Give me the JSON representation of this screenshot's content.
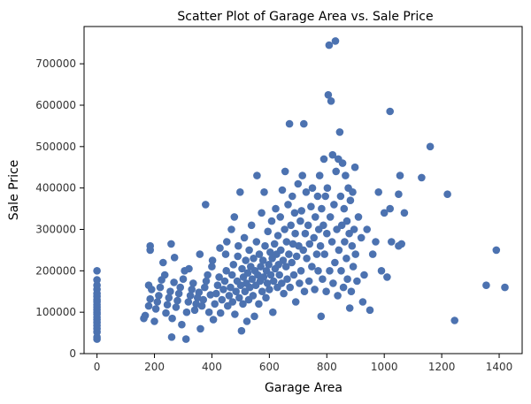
{
  "chart_data": {
    "type": "scatter",
    "title": "Scatter Plot of Garage Area vs. Sale Price",
    "xlabel": "Garage Area",
    "ylabel": "Sale Price",
    "xlim": [
      -45,
      1480
    ],
    "ylim": [
      0,
      790000
    ],
    "xticks": [
      0,
      200,
      400,
      600,
      800,
      1000,
      1200,
      1400
    ],
    "yticks": [
      0,
      100000,
      200000,
      300000,
      400000,
      500000,
      600000,
      700000
    ],
    "grid": false,
    "legend": "none",
    "marker_color": "#4c72b0",
    "points": [
      [
        0,
        35000
      ],
      [
        0,
        40000
      ],
      [
        0,
        52000
      ],
      [
        0,
        60000
      ],
      [
        0,
        68000
      ],
      [
        0,
        75000
      ],
      [
        0,
        82000
      ],
      [
        0,
        88000
      ],
      [
        0,
        95000
      ],
      [
        0,
        100000
      ],
      [
        0,
        106000
      ],
      [
        0,
        112000
      ],
      [
        0,
        118000
      ],
      [
        0,
        125000
      ],
      [
        0,
        130000
      ],
      [
        0,
        138000
      ],
      [
        0,
        145000
      ],
      [
        0,
        155000
      ],
      [
        0,
        165000
      ],
      [
        0,
        178000
      ],
      [
        0,
        200000
      ],
      [
        163,
        85000
      ],
      [
        168,
        92000
      ],
      [
        180,
        115000
      ],
      [
        185,
        132000
      ],
      [
        190,
        155000
      ],
      [
        180,
        165000
      ],
      [
        185,
        250000
      ],
      [
        185,
        260000
      ],
      [
        200,
        78000
      ],
      [
        205,
        108000
      ],
      [
        210,
        125000
      ],
      [
        215,
        140000
      ],
      [
        220,
        160000
      ],
      [
        225,
        178000
      ],
      [
        230,
        220000
      ],
      [
        236,
        190000
      ],
      [
        240,
        98000
      ],
      [
        245,
        118000
      ],
      [
        250,
        135000
      ],
      [
        255,
        150000
      ],
      [
        258,
        265000
      ],
      [
        260,
        40000
      ],
      [
        262,
        85000
      ],
      [
        268,
        172000
      ],
      [
        270,
        232000
      ],
      [
        275,
        112000
      ],
      [
        280,
        128000
      ],
      [
        285,
        145000
      ],
      [
        290,
        160000
      ],
      [
        295,
        70000
      ],
      [
        300,
        180000
      ],
      [
        305,
        200000
      ],
      [
        310,
        35000
      ],
      [
        312,
        100000
      ],
      [
        318,
        125000
      ],
      [
        320,
        205000
      ],
      [
        325,
        140000
      ],
      [
        330,
        155000
      ],
      [
        335,
        170000
      ],
      [
        340,
        105000
      ],
      [
        345,
        120000
      ],
      [
        350,
        135000
      ],
      [
        355,
        148000
      ],
      [
        358,
        240000
      ],
      [
        360,
        60000
      ],
      [
        365,
        115000
      ],
      [
        370,
        130000
      ],
      [
        375,
        160000
      ],
      [
        378,
        360000
      ],
      [
        380,
        175000
      ],
      [
        385,
        190000
      ],
      [
        390,
        100000
      ],
      [
        395,
        142000
      ],
      [
        400,
        210000
      ],
      [
        402,
        225000
      ],
      [
        405,
        82000
      ],
      [
        410,
        120000
      ],
      [
        415,
        145000
      ],
      [
        420,
        165000
      ],
      [
        425,
        185000
      ],
      [
        428,
        255000
      ],
      [
        430,
        98000
      ],
      [
        435,
        130000
      ],
      [
        440,
        155000
      ],
      [
        445,
        175000
      ],
      [
        448,
        240000
      ],
      [
        450,
        200000
      ],
      [
        452,
        270000
      ],
      [
        455,
        115000
      ],
      [
        460,
        140000
      ],
      [
        465,
        160000
      ],
      [
        468,
        300000
      ],
      [
        470,
        190000
      ],
      [
        472,
        125000
      ],
      [
        475,
        215000
      ],
      [
        478,
        330000
      ],
      [
        480,
        95000
      ],
      [
        484,
        150000
      ],
      [
        488,
        175000
      ],
      [
        490,
        235000
      ],
      [
        492,
        260000
      ],
      [
        495,
        135000
      ],
      [
        498,
        390000
      ],
      [
        500,
        165000
      ],
      [
        503,
        55000
      ],
      [
        505,
        205000
      ],
      [
        508,
        120000
      ],
      [
        510,
        185000
      ],
      [
        513,
        280000
      ],
      [
        515,
        150000
      ],
      [
        518,
        225000
      ],
      [
        520,
        170000
      ],
      [
        522,
        78000
      ],
      [
        525,
        195000
      ],
      [
        528,
        130000
      ],
      [
        530,
        250000
      ],
      [
        532,
        160000
      ],
      [
        535,
        210000
      ],
      [
        538,
        310000
      ],
      [
        540,
        180000
      ],
      [
        543,
        140000
      ],
      [
        545,
        230000
      ],
      [
        548,
        90000
      ],
      [
        550,
        200000
      ],
      [
        553,
        165000
      ],
      [
        555,
        270000
      ],
      [
        557,
        430000
      ],
      [
        560,
        190000
      ],
      [
        563,
        120000
      ],
      [
        565,
        240000
      ],
      [
        568,
        175000
      ],
      [
        570,
        210000
      ],
      [
        573,
        340000
      ],
      [
        575,
        150000
      ],
      [
        578,
        225000
      ],
      [
        580,
        185000
      ],
      [
        582,
        390000
      ],
      [
        585,
        260000
      ],
      [
        588,
        135000
      ],
      [
        590,
        200000
      ],
      [
        593,
        170000
      ],
      [
        595,
        295000
      ],
      [
        598,
        215000
      ],
      [
        600,
        155000
      ],
      [
        603,
        245000
      ],
      [
        605,
        190000
      ],
      [
        608,
        320000
      ],
      [
        610,
        230000
      ],
      [
        612,
        100000
      ],
      [
        615,
        175000
      ],
      [
        618,
        265000
      ],
      [
        620,
        205000
      ],
      [
        622,
        350000
      ],
      [
        625,
        240000
      ],
      [
        628,
        160000
      ],
      [
        630,
        285000
      ],
      [
        632,
        215000
      ],
      [
        635,
        190000
      ],
      [
        638,
        330000
      ],
      [
        640,
        250000
      ],
      [
        643,
        170000
      ],
      [
        645,
        395000
      ],
      [
        648,
        225000
      ],
      [
        650,
        145000
      ],
      [
        653,
        300000
      ],
      [
        655,
        440000
      ],
      [
        658,
        210000
      ],
      [
        660,
        270000
      ],
      [
        662,
        180000
      ],
      [
        665,
        360000
      ],
      [
        668,
        240000
      ],
      [
        670,
        555000
      ],
      [
        672,
        160000
      ],
      [
        675,
        310000
      ],
      [
        678,
        220000
      ],
      [
        680,
        380000
      ],
      [
        682,
        265000
      ],
      [
        685,
        190000
      ],
      [
        688,
        340000
      ],
      [
        690,
        290000
      ],
      [
        692,
        125000
      ],
      [
        695,
        235000
      ],
      [
        700,
        410000
      ],
      [
        702,
        260000
      ],
      [
        705,
        170000
      ],
      [
        708,
        320000
      ],
      [
        710,
        200000
      ],
      [
        712,
        345000
      ],
      [
        715,
        430000
      ],
      [
        718,
        250000
      ],
      [
        720,
        555000
      ],
      [
        722,
        150000
      ],
      [
        725,
        290000
      ],
      [
        728,
        390000
      ],
      [
        730,
        230000
      ],
      [
        735,
        310000
      ],
      [
        738,
        175000
      ],
      [
        740,
        265000
      ],
      [
        745,
        355000
      ],
      [
        748,
        210000
      ],
      [
        750,
        400000
      ],
      [
        755,
        280000
      ],
      [
        758,
        155000
      ],
      [
        760,
        330000
      ],
      [
        765,
        240000
      ],
      [
        768,
        380000
      ],
      [
        770,
        200000
      ],
      [
        772,
        300000
      ],
      [
        775,
        430000
      ],
      [
        778,
        260000
      ],
      [
        780,
        90000
      ],
      [
        782,
        350000
      ],
      [
        785,
        180000
      ],
      [
        788,
        310000
      ],
      [
        790,
        470000
      ],
      [
        792,
        240000
      ],
      [
        795,
        380000
      ],
      [
        798,
        150000
      ],
      [
        800,
        290000
      ],
      [
        802,
        400000
      ],
      [
        805,
        625000
      ],
      [
        808,
        745000
      ],
      [
        810,
        200000
      ],
      [
        812,
        330000
      ],
      [
        815,
        610000
      ],
      [
        818,
        270000
      ],
      [
        820,
        480000
      ],
      [
        822,
        170000
      ],
      [
        825,
        360000
      ],
      [
        828,
        220000
      ],
      [
        830,
        755000
      ],
      [
        832,
        440000
      ],
      [
        835,
        300000
      ],
      [
        838,
        140000
      ],
      [
        840,
        470000
      ],
      [
        842,
        250000
      ],
      [
        845,
        535000
      ],
      [
        848,
        380000
      ],
      [
        850,
        200000
      ],
      [
        852,
        310000
      ],
      [
        855,
        460000
      ],
      [
        858,
        160000
      ],
      [
        860,
        350000
      ],
      [
        862,
        270000
      ],
      [
        865,
        430000
      ],
      [
        868,
        230000
      ],
      [
        870,
        320000
      ],
      [
        872,
        180000
      ],
      [
        875,
        400000
      ],
      [
        878,
        290000
      ],
      [
        880,
        110000
      ],
      [
        882,
        370000
      ],
      [
        885,
        150000
      ],
      [
        888,
        260000
      ],
      [
        890,
        390000
      ],
      [
        892,
        210000
      ],
      [
        895,
        300000
      ],
      [
        898,
        450000
      ],
      [
        900,
        240000
      ],
      [
        905,
        175000
      ],
      [
        910,
        330000
      ],
      [
        920,
        280000
      ],
      [
        925,
        125000
      ],
      [
        930,
        190000
      ],
      [
        940,
        300000
      ],
      [
        950,
        105000
      ],
      [
        960,
        240000
      ],
      [
        970,
        270000
      ],
      [
        980,
        390000
      ],
      [
        990,
        200000
      ],
      [
        1000,
        340000
      ],
      [
        1010,
        185000
      ],
      [
        1020,
        350000
      ],
      [
        1020,
        585000
      ],
      [
        1025,
        270000
      ],
      [
        1050,
        260000
      ],
      [
        1055,
        430000
      ],
      [
        1050,
        385000
      ],
      [
        1060,
        265000
      ],
      [
        1070,
        340000
      ],
      [
        1130,
        425000
      ],
      [
        1160,
        500000
      ],
      [
        1220,
        385000
      ],
      [
        1245,
        80000
      ],
      [
        1355,
        165000
      ],
      [
        1390,
        250000
      ],
      [
        1420,
        160000
      ]
    ]
  }
}
